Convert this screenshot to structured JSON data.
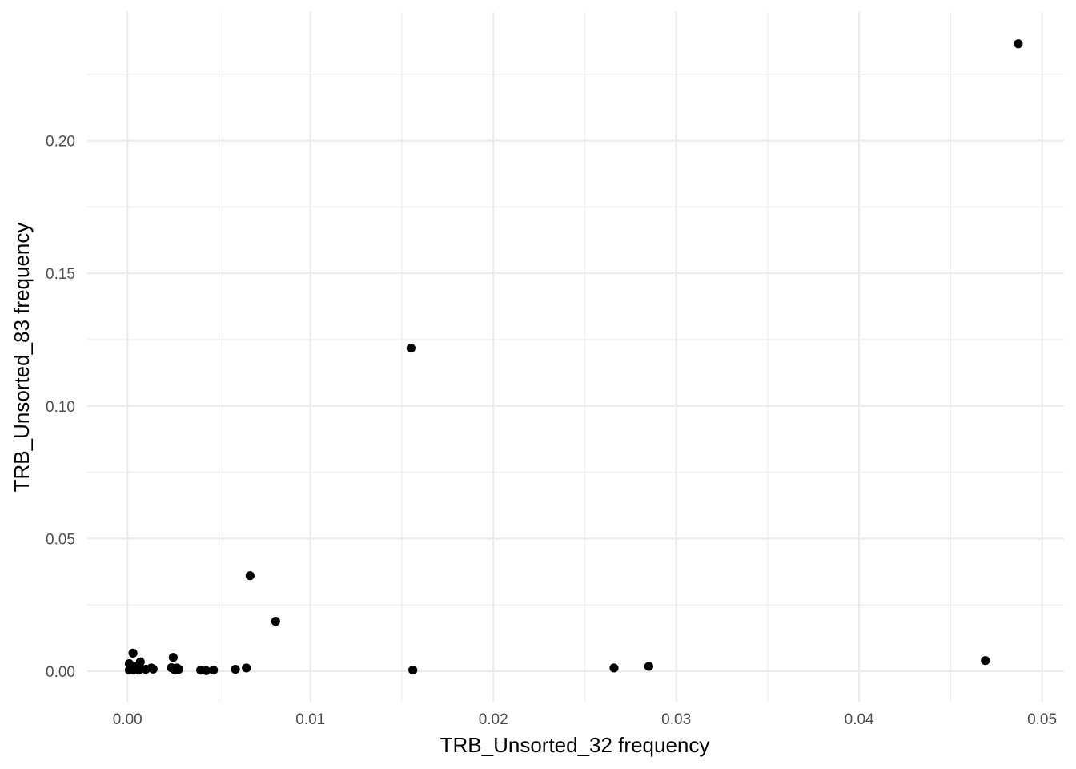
{
  "chart_data": {
    "type": "scatter",
    "xlabel": "TRB_Unsorted_32 frequency",
    "ylabel": "TRB_Unsorted_83 frequency",
    "xlim": [
      -0.0022,
      0.0512
    ],
    "ylim": [
      -0.0115,
      0.2485
    ],
    "x_ticks": [
      0.0,
      0.01,
      0.02,
      0.03,
      0.04,
      0.05
    ],
    "x_tick_labels": [
      "0.00",
      "0.01",
      "0.02",
      "0.03",
      "0.04",
      "0.05"
    ],
    "y_ticks": [
      0.0,
      0.05,
      0.1,
      0.15,
      0.2
    ],
    "y_tick_labels": [
      "0.00",
      "0.05",
      "0.10",
      "0.15",
      "0.20"
    ],
    "grid": true,
    "points": [
      {
        "x": 0.0487,
        "y": 0.2365
      },
      {
        "x": 0.0155,
        "y": 0.1218
      },
      {
        "x": 0.0067,
        "y": 0.036
      },
      {
        "x": 0.0081,
        "y": 0.0188
      },
      {
        "x": 0.0469,
        "y": 0.004
      },
      {
        "x": 0.0285,
        "y": 0.0018
      },
      {
        "x": 0.0266,
        "y": 0.0012
      },
      {
        "x": 0.0156,
        "y": 0.0004
      },
      {
        "x": 0.0065,
        "y": 0.0012
      },
      {
        "x": 0.0059,
        "y": 0.0007
      },
      {
        "x": 0.0047,
        "y": 0.0004
      },
      {
        "x": 0.0043,
        "y": 0.0002
      },
      {
        "x": 0.004,
        "y": 0.0004
      },
      {
        "x": 0.0028,
        "y": 0.0007
      },
      {
        "x": 0.0027,
        "y": 0.0012
      },
      {
        "x": 0.0026,
        "y": 0.0004
      },
      {
        "x": 0.0025,
        "y": 0.0052
      },
      {
        "x": 0.0024,
        "y": 0.0013
      },
      {
        "x": 0.0014,
        "y": 0.0008
      },
      {
        "x": 0.0013,
        "y": 0.0012
      },
      {
        "x": 0.001,
        "y": 0.0007
      },
      {
        "x": 0.0007,
        "y": 0.0035
      },
      {
        "x": 0.0007,
        "y": 0.001
      },
      {
        "x": 0.0006,
        "y": 0.0004
      },
      {
        "x": 0.0005,
        "y": 0.0018
      },
      {
        "x": 0.0004,
        "y": 0.0008
      },
      {
        "x": 0.0003,
        "y": 0.0068
      },
      {
        "x": 0.0003,
        "y": 0.0004
      },
      {
        "x": 0.0002,
        "y": 0.0012
      },
      {
        "x": 0.0001,
        "y": 0.0028
      },
      {
        "x": 0.0001,
        "y": 0.0004
      }
    ]
  }
}
